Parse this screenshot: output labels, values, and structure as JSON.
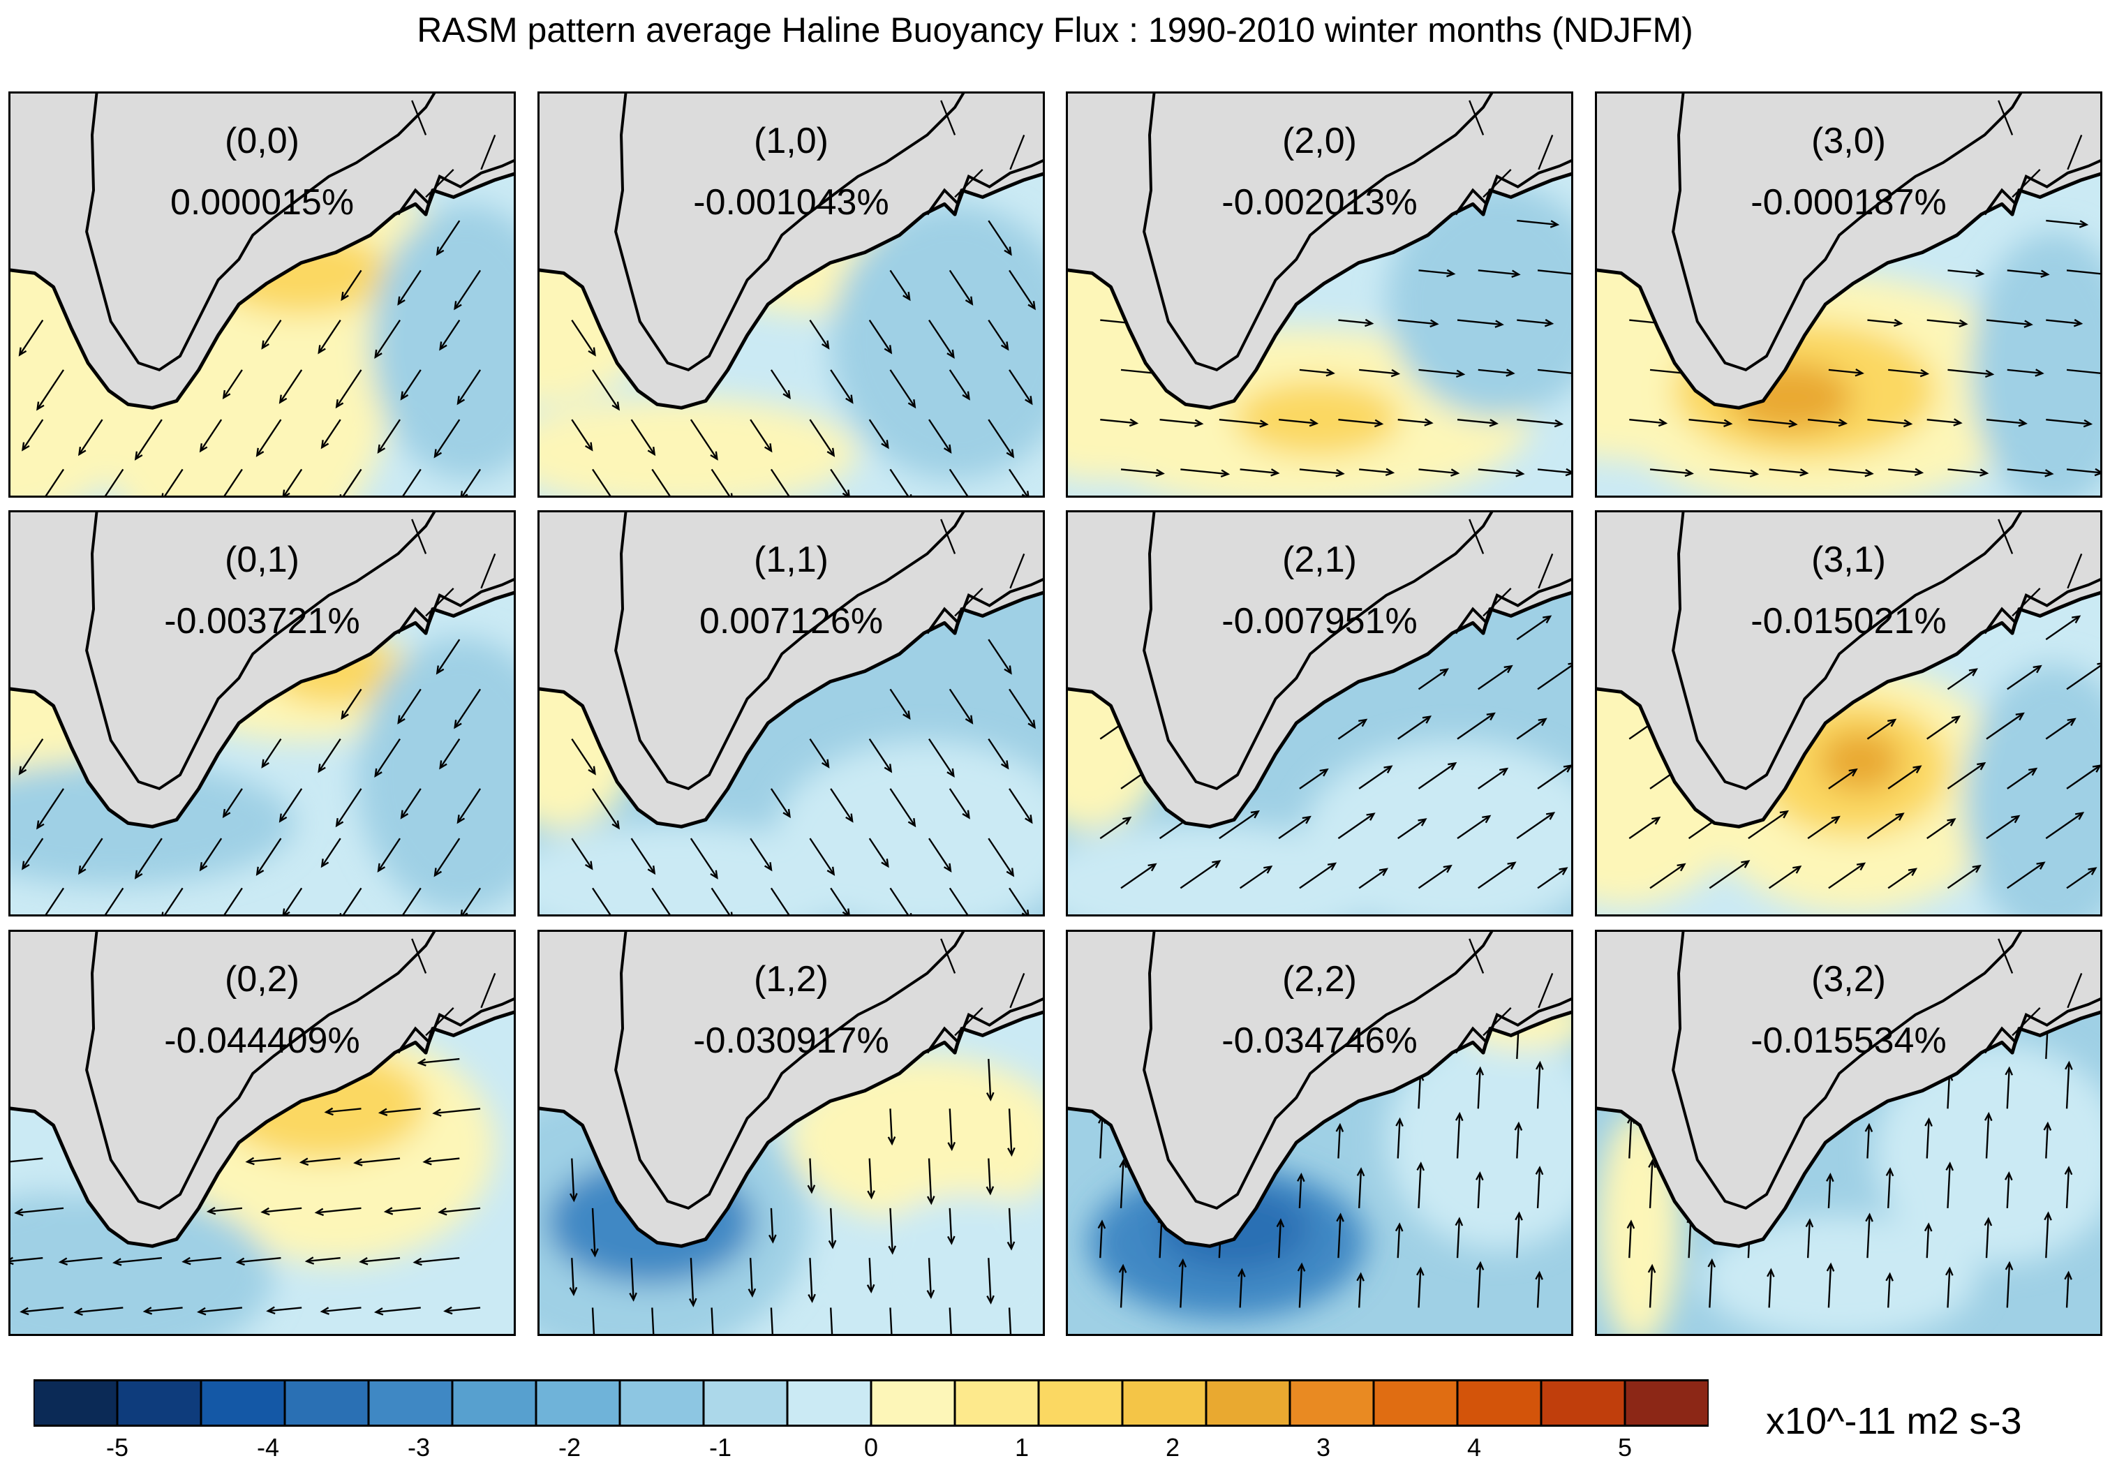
{
  "title": "RASM pattern average Haline Buoyancy Flux : 1990-2010 winter months (NDJFM)",
  "panels": [
    {
      "index": "(0,0)",
      "percent": "0.000015%",
      "pattern": "yellow-tongue-northeast",
      "arrow_flow": "southwest"
    },
    {
      "index": "(1,0)",
      "percent": "-0.001043%",
      "pattern": "mixed-yellow-northeast",
      "arrow_flow": "southeast"
    },
    {
      "index": "(2,0)",
      "percent": "-0.002013%",
      "pattern": "yellow-south-tip",
      "arrow_flow": "east"
    },
    {
      "index": "(3,0)",
      "percent": "-0.000187%",
      "pattern": "strong-yellow-south",
      "arrow_flow": "east"
    },
    {
      "index": "(0,1)",
      "percent": "-0.003721%",
      "pattern": "yellow-northeast-blue-south",
      "arrow_flow": "southwest"
    },
    {
      "index": "(1,1)",
      "percent": "0.007126%",
      "pattern": "mostly-blue",
      "arrow_flow": "southeast"
    },
    {
      "index": "(2,1)",
      "percent": "-0.007951%",
      "pattern": "mostly-blue",
      "arrow_flow": "northeast"
    },
    {
      "index": "(3,1)",
      "percent": "-0.015021%",
      "pattern": "yellow-southeast-of-tip",
      "arrow_flow": "northeast"
    },
    {
      "index": "(0,2)",
      "percent": "-0.044409%",
      "pattern": "yellow-east-blue-southwest",
      "arrow_flow": "west"
    },
    {
      "index": "(1,2)",
      "percent": "-0.030917%",
      "pattern": "blue-tip-yellow-east",
      "arrow_flow": "south"
    },
    {
      "index": "(2,2)",
      "percent": "-0.034746%",
      "pattern": "dark-blue-tip",
      "arrow_flow": "north"
    },
    {
      "index": "(3,2)",
      "percent": "-0.015534%",
      "pattern": "blue-with-yellow-west",
      "arrow_flow": "north"
    }
  ],
  "colorbar": {
    "colors": [
      "#0b2a56",
      "#0e3c7c",
      "#1458a6",
      "#2a70b4",
      "#3f88c4",
      "#57a0cf",
      "#6fb3d9",
      "#8dc6e2",
      "#acd8ea",
      "#cbeaf4",
      "#fdf6b8",
      "#fde98c",
      "#fbd862",
      "#f4c547",
      "#e9a930",
      "#e98a22",
      "#e06d12",
      "#d3540a",
      "#c03e0c",
      "#8c2716"
    ],
    "ticks": [
      "-5",
      "-4",
      "-3",
      "-2",
      "-1",
      "0",
      "1",
      "2",
      "3",
      "4",
      "5"
    ],
    "units": "x10^-11 m2 s-3"
  },
  "legend_colors": {
    "land": "#dcdcdc",
    "negative_light": "#cbeaf4",
    "negative_mid": "#9fd0e5",
    "negative_dark": "#3f88c4",
    "positive_light": "#fdf6b8",
    "positive_mid": "#fbd862",
    "positive_dark": "#e9a930"
  }
}
